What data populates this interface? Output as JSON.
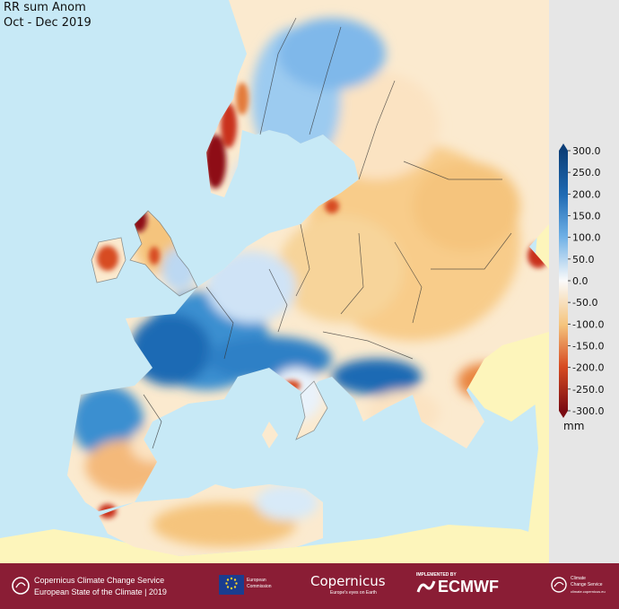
{
  "title": {
    "line1": "RR sum Anom",
    "line2": "Oct - Dec 2019"
  },
  "colorbar": {
    "ticks": [
      "300.0",
      "250.0",
      "200.0",
      "150.0",
      "100.0",
      "50.0",
      "0.0",
      "-50.0",
      "-100.0",
      "-150.0",
      "-200.0",
      "-250.0",
      "-300.0"
    ],
    "unit": "mm",
    "colors": {
      "wettest": "#0b3e78",
      "wet": "#3a8fd0",
      "neutral": "#fafafa",
      "dry": "#f3a944",
      "driest": "#7a0b12"
    }
  },
  "colors": {
    "sea": "#c7e9f6",
    "land_outside": "#fdf5bb",
    "footer": "#8a1d35",
    "legend_panel": "#e6e6e6"
  },
  "footer": {
    "service_line1": "Copernicus Climate Change Service",
    "service_line2": "European State of the Climate | 2019",
    "eu_label1": "European",
    "eu_label2": "Commission",
    "copernicus_logo": "Copernicus",
    "copernicus_tagline": "Europe's eyes on Earth",
    "implemented_by": "IMPLEMENTED BY",
    "ecmwf_logo": "ECMWF",
    "c3s_line1": "Climate",
    "c3s_line2": "Change Service",
    "c3s_url": "climate.copernicus.eu"
  }
}
